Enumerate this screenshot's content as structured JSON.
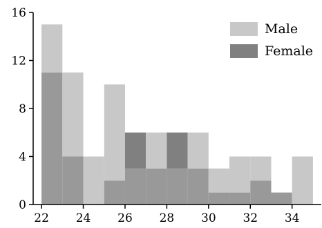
{
  "chart_data": {
    "type": "bar",
    "subtype": "overlaid-histogram",
    "title": "",
    "xlabel": "",
    "ylabel": "",
    "bin_width": 1,
    "xlim": [
      21.6,
      35.4
    ],
    "ylim": [
      0,
      16
    ],
    "x_ticks": [
      "22",
      "24",
      "26",
      "28",
      "30",
      "32",
      "34"
    ],
    "y_ticks": [
      "0",
      "4",
      "8",
      "12",
      "16"
    ],
    "grid": false,
    "legend_position": "top-right",
    "bin_starts": [
      22,
      23,
      24,
      25,
      26,
      27,
      28,
      29,
      30,
      31,
      32,
      33,
      34
    ],
    "series": [
      {
        "name": "Male",
        "color": "#c8c8c8",
        "values": [
          15,
          11,
          4,
          10,
          3,
          6,
          3,
          6,
          3,
          4,
          4,
          1,
          4
        ]
      },
      {
        "name": "Female",
        "color": "#808080",
        "values": [
          11,
          4,
          0,
          2,
          6,
          3,
          6,
          3,
          1,
          1,
          2,
          1,
          0
        ]
      }
    ],
    "overlap_color": "#999999"
  }
}
